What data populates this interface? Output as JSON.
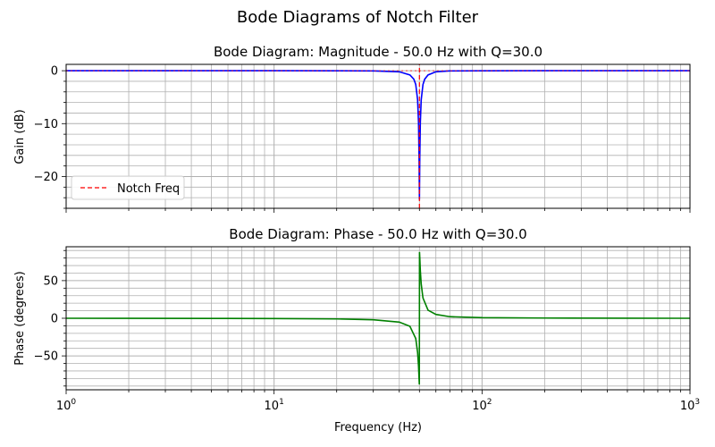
{
  "suptitle": "Bode Diagrams of Notch Filter",
  "chart_data": [
    {
      "type": "line",
      "title": "Bode Diagram: Magnitude - 50.0 Hz with Q=30.0",
      "xlabel": "",
      "ylabel": "Gain (dB)",
      "xscale": "log",
      "xlim": [
        1,
        1000
      ],
      "ylim": [
        -26,
        1.2
      ],
      "grid": "both (major and minor)",
      "legend": {
        "placement": "lower-left",
        "entries": [
          "Notch Freq"
        ]
      },
      "yticks": [
        0,
        -10,
        -20
      ],
      "ytick_labels": [
        "0",
        "−10",
        "−20"
      ],
      "series": [
        {
          "color": "#0000ff",
          "x": [
            1,
            2,
            5,
            10,
            20,
            30,
            40,
            45,
            47,
            48,
            49,
            49.5,
            49.8,
            50,
            50.2,
            50.5,
            51,
            52,
            53,
            55,
            60,
            70,
            100,
            200,
            500,
            1000
          ],
          "y": [
            0,
            0,
            0,
            0,
            -0.01,
            -0.04,
            -0.2,
            -0.8,
            -1.6,
            -2.6,
            -5.5,
            -9.8,
            -16.5,
            -24.4,
            -16.5,
            -9.8,
            -5.5,
            -2.6,
            -1.6,
            -0.8,
            -0.2,
            -0.04,
            -0.01,
            0,
            0,
            0
          ]
        },
        {
          "name": "Notch Freq",
          "color": "#ff0000",
          "style": "dashed",
          "x": [
            50,
            50
          ],
          "y": [
            -26,
            1.2
          ]
        }
      ]
    },
    {
      "type": "line",
      "title": "Bode Diagram: Phase - 50.0 Hz with Q=30.0",
      "xlabel": "Frequency (Hz)",
      "ylabel": "Phase (degrees)",
      "xscale": "log",
      "xlim": [
        1,
        1000
      ],
      "ylim": [
        -95,
        95
      ],
      "grid": "both (major and minor)",
      "yticks": [
        50,
        0,
        -50
      ],
      "ytick_labels": [
        "50",
        "0",
        "−50"
      ],
      "xtick_labels": [
        "10^0",
        "10^1",
        "10^2",
        "10^3"
      ],
      "series": [
        {
          "color": "#008000",
          "x": [
            1,
            2,
            5,
            10,
            20,
            30,
            40,
            45,
            48,
            49,
            49.5,
            49.8,
            49.95,
            50.05,
            50.2,
            50.5,
            51,
            52,
            55,
            60,
            70,
            100,
            200,
            500,
            1000
          ],
          "y": [
            0,
            -0.1,
            -0.2,
            -0.4,
            -0.9,
            -2.0,
            -5.1,
            -10.7,
            -26.9,
            -45.5,
            -63.3,
            -80.3,
            -88.0,
            88.0,
            80.3,
            63.3,
            45.5,
            26.9,
            10.7,
            5.1,
            2.1,
            0.8,
            0.3,
            0.1,
            0
          ]
        }
      ]
    }
  ]
}
